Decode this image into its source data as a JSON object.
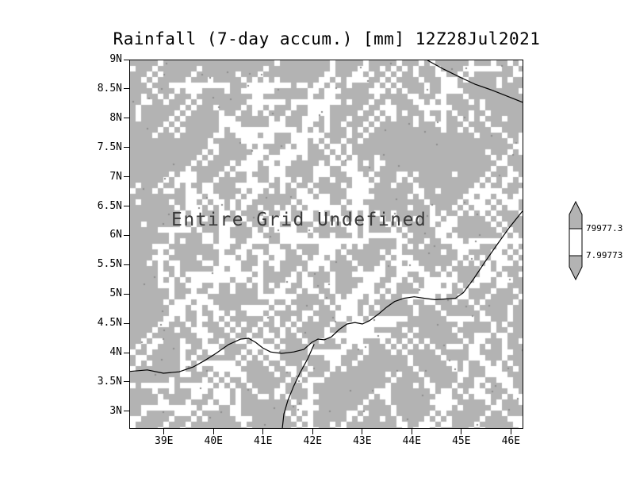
{
  "page": {
    "background": "#ffffff"
  },
  "chart_data": {
    "type": "heatmap",
    "title": "Rainfall (7-day accum.) [mm] 12Z28Jul2021",
    "annotation": "Entire Grid Undefined",
    "data_status": "all grid values undefined; background shown as gray/white undefined-grid hatching",
    "x_ticks": [
      "39E",
      "40E",
      "41E",
      "42E",
      "43E",
      "44E",
      "45E",
      "46E"
    ],
    "x_tick_values": [
      39,
      40,
      41,
      42,
      43,
      44,
      45,
      46
    ],
    "y_ticks": [
      "9N",
      "8.5N",
      "8N",
      "7.5N",
      "7N",
      "6.5N",
      "6N",
      "5.5N",
      "5N",
      "4.5N",
      "4N",
      "3.5N",
      "3N"
    ],
    "y_tick_values": [
      9,
      8.5,
      8,
      7.5,
      7,
      6.5,
      6,
      5.5,
      5,
      4.5,
      4,
      3.5,
      3
    ],
    "x_range": [
      38.3,
      46.25
    ],
    "y_range": [
      2.7,
      9.0
    ],
    "grid": false,
    "legend_position": "right-colorbar",
    "colorbar": {
      "labels": [
        "79977.3",
        "7.99773"
      ],
      "above_color": "#b3b3b3",
      "band_color": "#ffffff",
      "below_color": "#b3b3b3"
    },
    "colors": {
      "plot_bg": "#b3b3b3",
      "speckle": "#ffffff",
      "speck_dark": "#8c8c8c",
      "map_line": "#000000",
      "text": "#000000",
      "annotation": "#3a3a3a"
    },
    "map_lines": [
      {
        "name": "coastline-northeast",
        "points": [
          [
            0.758,
            0.0
          ],
          [
            0.799,
            0.024
          ],
          [
            0.839,
            0.045
          ],
          [
            0.879,
            0.065
          ],
          [
            0.919,
            0.08
          ],
          [
            0.96,
            0.097
          ],
          [
            1.0,
            0.114
          ]
        ]
      },
      {
        "name": "coastline-south",
        "points": [
          [
            0.0,
            0.846
          ],
          [
            0.044,
            0.842
          ],
          [
            0.085,
            0.851
          ],
          [
            0.125,
            0.847
          ],
          [
            0.161,
            0.834
          ],
          [
            0.191,
            0.816
          ],
          [
            0.219,
            0.797
          ],
          [
            0.251,
            0.773
          ],
          [
            0.282,
            0.758
          ],
          [
            0.302,
            0.756
          ],
          [
            0.32,
            0.767
          ],
          [
            0.338,
            0.782
          ],
          [
            0.358,
            0.793
          ],
          [
            0.386,
            0.797
          ],
          [
            0.417,
            0.793
          ],
          [
            0.443,
            0.786
          ],
          [
            0.463,
            0.767
          ],
          [
            0.479,
            0.758
          ],
          [
            0.495,
            0.76
          ],
          [
            0.513,
            0.752
          ],
          [
            0.533,
            0.732
          ],
          [
            0.553,
            0.717
          ],
          [
            0.573,
            0.713
          ],
          [
            0.592,
            0.717
          ],
          [
            0.61,
            0.708
          ],
          [
            0.632,
            0.691
          ],
          [
            0.654,
            0.671
          ],
          [
            0.674,
            0.656
          ],
          [
            0.698,
            0.647
          ],
          [
            0.724,
            0.643
          ],
          [
            0.75,
            0.647
          ],
          [
            0.777,
            0.651
          ],
          [
            0.803,
            0.649
          ],
          [
            0.829,
            0.647
          ],
          [
            0.849,
            0.632
          ],
          [
            0.875,
            0.595
          ],
          [
            0.903,
            0.55
          ],
          [
            0.934,
            0.503
          ],
          [
            0.966,
            0.455
          ],
          [
            1.0,
            0.41
          ]
        ]
      },
      {
        "name": "river-line",
        "points": [
          [
            0.469,
            0.772
          ],
          [
            0.453,
            0.811
          ],
          [
            0.433,
            0.85
          ],
          [
            0.417,
            0.886
          ],
          [
            0.402,
            0.925
          ],
          [
            0.392,
            0.962
          ],
          [
            0.388,
            1.0
          ]
        ]
      }
    ]
  }
}
